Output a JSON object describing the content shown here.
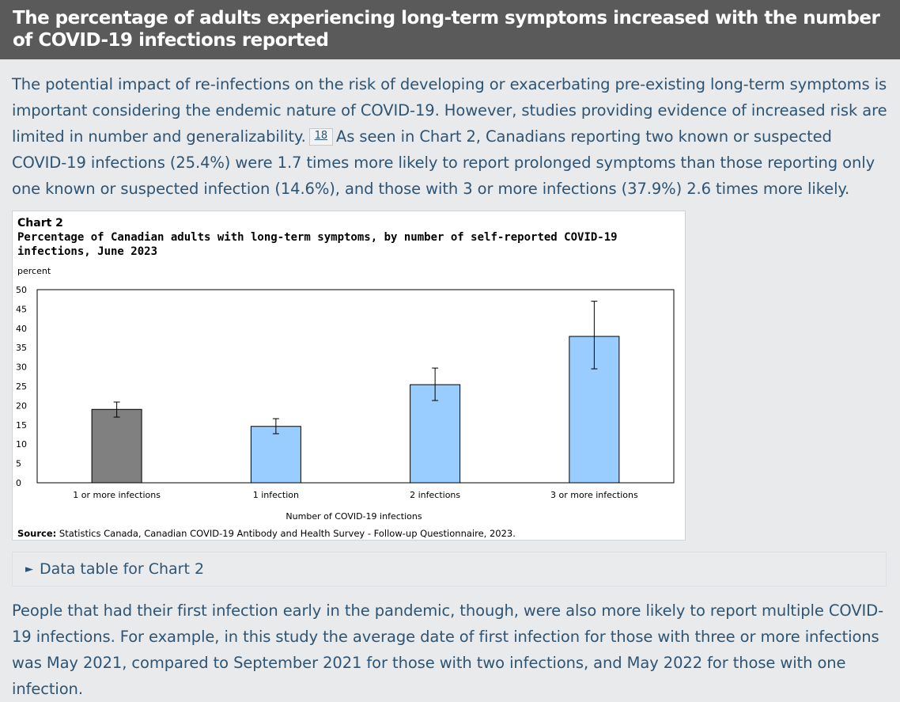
{
  "header": {
    "title": "The percentage of adults experiencing long-term symptoms increased with the number of COVID-19 infections reported"
  },
  "intro": {
    "text_before": "The potential impact of re-infections on the risk of developing or exacerbating pre-existing long-term symptoms is important considering the endemic nature of COVID-19. However, studies providing evidence of increased risk are limited in number and generalizability.",
    "footnote": "18",
    "text_after": "As seen in Chart 2, Canadians reporting two known or suspected COVID-19 infections (25.4%) were 1.7 times more likely to report prolonged symptoms than those reporting only one known or suspected infection (14.6%), and those with 3 or more infections (37.9%) 2.6 times more likely."
  },
  "chart": {
    "label": "Chart 2",
    "title": "Percentage of Canadian adults with long-term symptoms, by number of self-reported COVID-19 infections, June 2023",
    "source_label": "Source:",
    "source_text": "Statistics Canada, Canadian COVID-19 Antibody and Health Survey - Follow-up Questionnaire, 2023."
  },
  "chart_data": {
    "type": "bar",
    "title": "Percentage of Canadian adults with long-term symptoms, by number of self-reported COVID-19 infections, June 2023",
    "ylabel": "percent",
    "xlabel": "Number of COVID-19 infections",
    "ylim": [
      0,
      50
    ],
    "yticks": [
      0,
      5,
      10,
      15,
      20,
      25,
      30,
      35,
      40,
      45,
      50
    ],
    "categories": [
      "1 or more infections",
      "1 infection",
      "2 infections",
      "3 or more infections"
    ],
    "values": [
      19.0,
      14.6,
      25.4,
      37.9
    ],
    "ci_low": [
      17.0,
      12.7,
      21.3,
      29.5
    ],
    "ci_high": [
      20.9,
      16.6,
      29.7,
      47.0
    ],
    "colors": [
      "#808080",
      "#99ccff",
      "#99ccff",
      "#99ccff"
    ],
    "grid": false
  },
  "data_table": {
    "label": "Data table for Chart 2"
  },
  "outro": {
    "text": "People that had their first infection early in the pandemic, though, were also more likely to report multiple COVID-19 infections. For example, in this study the average date of first infection for those with three or more infections was May 2021, compared to September 2021 for those with two infections, and May 2022 for those with one infection."
  }
}
